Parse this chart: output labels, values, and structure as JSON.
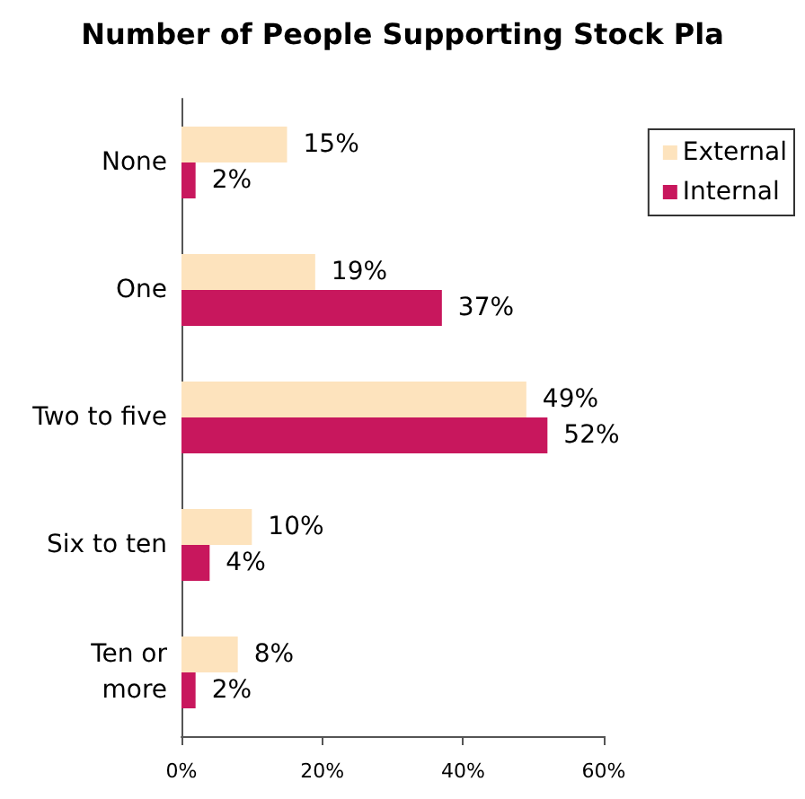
{
  "chart_data": {
    "type": "bar",
    "orientation": "horizontal",
    "title": "Number of People Supporting Stock Pla",
    "categories": [
      "None",
      "One",
      "Two to five",
      "Six to ten",
      "Ten or\nmore"
    ],
    "series": [
      {
        "name": "External",
        "color": "#fde3bd",
        "values": [
          15,
          19,
          49,
          10,
          8
        ],
        "value_labels": [
          "15%",
          "19%",
          "49%",
          "10%",
          "8%"
        ]
      },
      {
        "name": "Internal",
        "color": "#c8175d",
        "values": [
          2,
          37,
          52,
          4,
          2
        ],
        "value_labels": [
          "2%",
          "37%",
          "52%",
          "4%",
          "2%"
        ]
      }
    ],
    "xlim": [
      0,
      60
    ],
    "xticks": [
      {
        "value": 0,
        "label": "0%"
      },
      {
        "value": 20,
        "label": "20%"
      },
      {
        "value": 40,
        "label": "40%"
      },
      {
        "value": 60,
        "label": "60%"
      }
    ],
    "grid": false,
    "legend": "right"
  }
}
